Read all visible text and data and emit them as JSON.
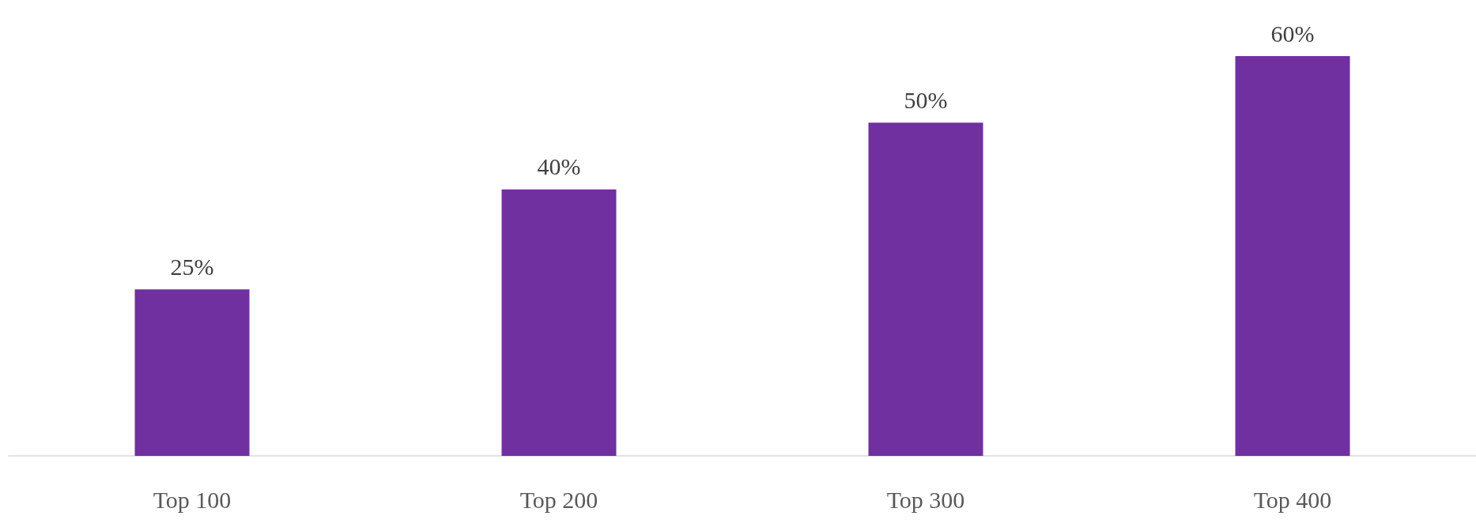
{
  "chart_data": {
    "type": "bar",
    "categories": [
      "Top 100",
      "Top 200",
      "Top 300",
      "Top 400"
    ],
    "values": [
      25,
      40,
      50,
      60
    ],
    "value_labels": [
      "25%",
      "40%",
      "50%",
      "60%"
    ],
    "color": "#7030a0"
  }
}
